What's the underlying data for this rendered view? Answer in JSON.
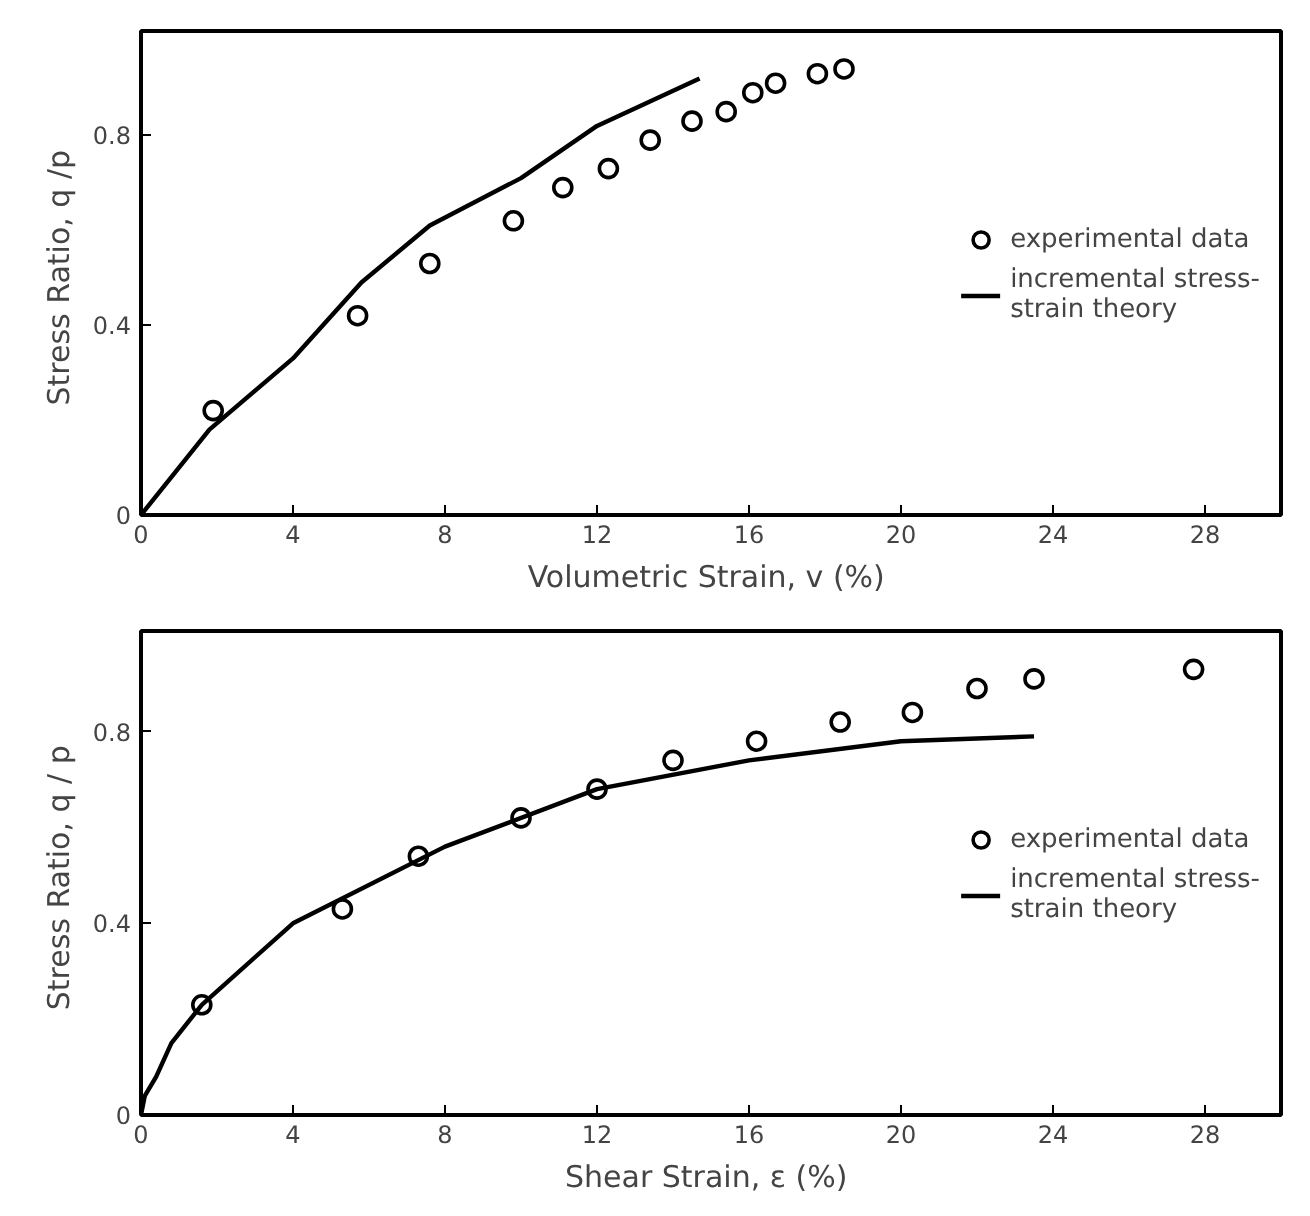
{
  "chart_data": [
    {
      "type": "scatter",
      "xlabel": "Volumetric  Strain, v (%)",
      "ylabel": "Stress  Ratio, q /p",
      "xlim": [
        0,
        30
      ],
      "ylim": [
        0,
        1.02
      ],
      "xticks": [
        0,
        4,
        8,
        12,
        16,
        20,
        24,
        28
      ],
      "yticks": [
        0,
        0.4,
        0.8
      ],
      "grid": false,
      "legend": "right",
      "series": [
        {
          "name": "experimental data",
          "marker": "circle",
          "color": "#000000",
          "x": [
            1.9,
            5.7,
            7.6,
            9.8,
            11.1,
            12.3,
            13.4,
            14.5,
            15.4,
            16.1,
            16.7,
            17.8,
            18.5
          ],
          "values": [
            0.22,
            0.42,
            0.53,
            0.62,
            0.69,
            0.73,
            0.79,
            0.83,
            0.85,
            0.89,
            0.91,
            0.93,
            0.94
          ]
        },
        {
          "name": "incremental stress-\nstrain theory",
          "type": "line",
          "line_style": "solid",
          "color": "#000000",
          "x": [
            0,
            1.8,
            4,
            5.8,
            7.6,
            10,
            12,
            14.7
          ],
          "values": [
            0,
            0.18,
            0.33,
            0.49,
            0.61,
            0.71,
            0.82,
            0.92
          ]
        }
      ]
    },
    {
      "type": "scatter",
      "xlabel": "Shear  Strain, ε (%)",
      "ylabel": "Stress  Ratio, q / p",
      "xlim": [
        0,
        30
      ],
      "ylim": [
        0,
        1.01
      ],
      "xticks": [
        0,
        4,
        8,
        12,
        16,
        20,
        24,
        28
      ],
      "yticks": [
        0,
        0.4,
        0.8
      ],
      "grid": false,
      "legend": "right",
      "series": [
        {
          "name": "experimental data",
          "marker": "circle",
          "color": "#000000",
          "x": [
            1.6,
            5.3,
            7.3,
            10,
            12,
            14,
            16.2,
            18.4,
            20.3,
            22,
            23.5,
            27.7
          ],
          "values": [
            0.23,
            0.43,
            0.54,
            0.62,
            0.68,
            0.74,
            0.78,
            0.82,
            0.84,
            0.89,
            0.91,
            0.93
          ]
        },
        {
          "name": "incremental stress-\nstrain theory",
          "type": "line",
          "line_style": "solid",
          "color": "#000000",
          "x": [
            0,
            0.1,
            0.4,
            0.8,
            1.6,
            4,
            8,
            12,
            16,
            20,
            23.5
          ],
          "values": [
            0,
            0.04,
            0.08,
            0.15,
            0.23,
            0.4,
            0.56,
            0.68,
            0.74,
            0.78,
            0.79
          ]
        }
      ]
    }
  ]
}
